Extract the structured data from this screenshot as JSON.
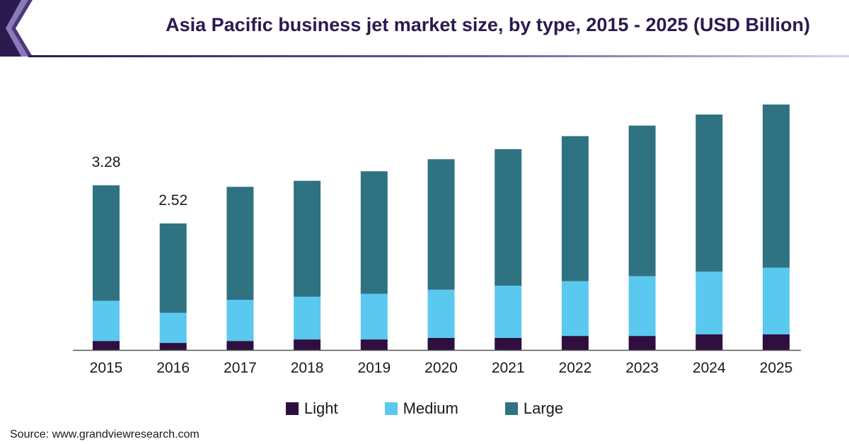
{
  "header": {
    "title": "Asia Pacific business jet market size, by type, 2015 - 2025 (USD Billion)"
  },
  "colors": {
    "light": "#2e0f3f",
    "medium": "#5bc8f0",
    "large": "#2f7282",
    "axis": "#555555",
    "accent": "#2b1a4f"
  },
  "chart_data": {
    "type": "bar",
    "stacked": true,
    "title": "Asia Pacific business jet market size, by type, 2015 - 2025 (USD Billion)",
    "xlabel": "",
    "ylabel": "",
    "ylim": [
      0,
      5
    ],
    "categories": [
      "2015",
      "2016",
      "2017",
      "2018",
      "2019",
      "2020",
      "2021",
      "2022",
      "2023",
      "2024",
      "2025"
    ],
    "series": [
      {
        "name": "Light",
        "values": [
          0.18,
          0.14,
          0.18,
          0.21,
          0.21,
          0.24,
          0.24,
          0.28,
          0.28,
          0.31,
          0.31
        ]
      },
      {
        "name": "Medium",
        "values": [
          0.8,
          0.6,
          0.82,
          0.85,
          0.91,
          0.96,
          1.04,
          1.09,
          1.19,
          1.25,
          1.33
        ]
      },
      {
        "name": "Large",
        "values": [
          2.3,
          1.78,
          2.25,
          2.31,
          2.44,
          2.6,
          2.72,
          2.89,
          3.0,
          3.13,
          3.25
        ]
      }
    ],
    "data_labels": [
      {
        "category": "2015",
        "text": "3.28"
      },
      {
        "category": "2016",
        "text": "2.52"
      }
    ],
    "grid": false,
    "legend_position": "bottom"
  },
  "legend": {
    "items": [
      {
        "label": "Light",
        "color": "#2e0f3f"
      },
      {
        "label": "Medium",
        "color": "#5bc8f0"
      },
      {
        "label": "Large",
        "color": "#2f7282"
      }
    ]
  },
  "footer": {
    "source": "Source: www.grandviewresearch.com"
  }
}
